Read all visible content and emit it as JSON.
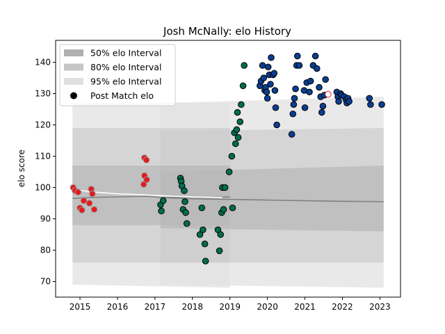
{
  "chart_data": {
    "type": "scatter",
    "title": "Josh McNally: elo History",
    "xlabel": "",
    "ylabel": "elo score",
    "xlim": [
      2014.35,
      2023.55
    ],
    "ylim": [
      65,
      147
    ],
    "xticks": [
      2015,
      2016,
      2017,
      2018,
      2019,
      2020,
      2021,
      2022,
      2023
    ],
    "yticks": [
      70,
      80,
      90,
      100,
      110,
      120,
      130,
      140
    ],
    "grid": false,
    "legend_position": "upper-left",
    "legend": [
      {
        "label": "50% elo Interval",
        "color": "#b0b0b0",
        "kind": "patch"
      },
      {
        "label": "80% elo Interval",
        "color": "#c6c6c6",
        "kind": "patch"
      },
      {
        "label": "95% elo Interval",
        "color": "#e0e0e0",
        "kind": "patch"
      },
      {
        "label": "Post Match elo",
        "color": "#000000",
        "kind": "marker"
      }
    ],
    "colors": {
      "band50": "#b8b8b8",
      "band80": "#cdcdcd",
      "band95": "#e2e2e2",
      "line": "#808080",
      "early_line": "#ffffff"
    },
    "bands": [
      {
        "name": "95%",
        "segments": [
          {
            "x": [
              2014.8,
              2019.0
            ],
            "upper": [
              127,
              127
            ],
            "lower": [
              69,
              68
            ]
          },
          {
            "x": [
              2017.15,
              2023.1
            ],
            "upper": [
              127,
              129
            ],
            "lower": [
              69,
              68
            ]
          }
        ]
      },
      {
        "name": "80%",
        "segments": [
          {
            "x": [
              2014.8,
              2019.0
            ],
            "upper": [
              119,
              119
            ],
            "lower": [
              76,
              76
            ]
          },
          {
            "x": [
              2017.15,
              2023.1
            ],
            "upper": [
              118,
              119
            ],
            "lower": [
              76,
              76
            ]
          }
        ]
      },
      {
        "name": "50%",
        "segments": [
          {
            "x": [
              2014.8,
              2019.0
            ],
            "upper": [
              107,
              107
            ],
            "lower": [
              88,
              88
            ]
          },
          {
            "x": [
              2017.15,
              2023.1
            ],
            "upper": [
              105,
              107
            ],
            "lower": [
              87,
              86
            ]
          }
        ]
      }
    ],
    "lines": [
      {
        "color": "#808080",
        "x": [
          2014.8,
          2015.2,
          2016.0,
          2016.8,
          2017.2,
          2018.0,
          2018.5,
          2019.0
        ],
        "y": [
          96.5,
          96.8,
          97.0,
          97.2,
          96.8,
          97.1,
          96.9,
          97.0
        ]
      },
      {
        "color": "#808080",
        "x": [
          2017.2,
          2018.0,
          2019.0,
          2020.0,
          2021.0,
          2022.0,
          2023.1
        ],
        "y": [
          96.8,
          96.4,
          96.2,
          96.0,
          95.8,
          95.6,
          95.5
        ]
      },
      {
        "color": "#ffffff",
        "x": [
          2014.8,
          2015.3,
          2016.0,
          2016.8,
          2017.5,
          2018.2,
          2018.8
        ],
        "y": [
          99.5,
          98.6,
          98.0,
          97.6,
          97.2,
          97.0,
          96.8
        ]
      }
    ],
    "series": [
      {
        "color": "#e31a1c",
        "edge": "#999999",
        "points": [
          [
            2014.82,
            100.0
          ],
          [
            2014.87,
            99.0
          ],
          [
            2014.95,
            98.5
          ],
          [
            2015.0,
            93.5
          ],
          [
            2015.05,
            92.8
          ],
          [
            2015.1,
            95.8
          ],
          [
            2015.25,
            95.0
          ],
          [
            2015.3,
            99.5
          ],
          [
            2015.33,
            98.0
          ],
          [
            2015.38,
            93.0
          ],
          [
            2016.72,
            109.5
          ],
          [
            2016.77,
            108.8
          ],
          [
            2016.72,
            103.8
          ],
          [
            2016.78,
            102.5
          ],
          [
            2016.7,
            101.0
          ]
        ]
      },
      {
        "color": "#006d4f",
        "edge": "#000000",
        "points": [
          [
            2017.15,
            94.5
          ],
          [
            2017.17,
            92.5
          ],
          [
            2017.22,
            95.8
          ],
          [
            2017.68,
            103.0
          ],
          [
            2017.7,
            102.0
          ],
          [
            2017.72,
            100.5
          ],
          [
            2017.75,
            93.0
          ],
          [
            2017.78,
            99.0
          ],
          [
            2017.8,
            95.5
          ],
          [
            2017.82,
            92.0
          ],
          [
            2017.85,
            88.5
          ],
          [
            2018.2,
            85.0
          ],
          [
            2018.25,
            93.5
          ],
          [
            2018.28,
            86.5
          ],
          [
            2018.33,
            82.0
          ],
          [
            2018.35,
            76.5
          ],
          [
            2018.68,
            86.5
          ],
          [
            2018.72,
            79.8
          ],
          [
            2018.75,
            85.0
          ],
          [
            2018.78,
            92.0
          ],
          [
            2018.8,
            100.0
          ],
          [
            2018.83,
            93.0
          ],
          [
            2018.87,
            100.0
          ],
          [
            2018.98,
            105.0
          ],
          [
            2019.05,
            110.0
          ],
          [
            2019.07,
            93.5
          ],
          [
            2019.12,
            117.5
          ],
          [
            2019.15,
            114.0
          ],
          [
            2019.18,
            118.5
          ],
          [
            2019.2,
            124.0
          ],
          [
            2019.22,
            116.0
          ],
          [
            2019.27,
            121.0
          ],
          [
            2019.3,
            126.5
          ],
          [
            2019.35,
            132.5
          ],
          [
            2019.38,
            139.0
          ]
        ]
      },
      {
        "color": "#0a3e91",
        "edge": "#000000",
        "points": [
          [
            2019.8,
            132.5
          ],
          [
            2019.83,
            134.0
          ],
          [
            2019.87,
            139.0
          ],
          [
            2019.9,
            135.0
          ],
          [
            2019.93,
            131.0
          ],
          [
            2019.95,
            132.0
          ],
          [
            2019.98,
            130.5
          ],
          [
            2020.0,
            128.5
          ],
          [
            2020.02,
            138.5
          ],
          [
            2020.05,
            136.0
          ],
          [
            2020.08,
            133.0
          ],
          [
            2020.1,
            141.5
          ],
          [
            2020.15,
            136.0
          ],
          [
            2020.18,
            136.5
          ],
          [
            2020.2,
            131.0
          ],
          [
            2020.22,
            125.5
          ],
          [
            2020.25,
            120.0
          ],
          [
            2020.65,
            117.0
          ],
          [
            2020.68,
            123.5
          ],
          [
            2020.7,
            126.5
          ],
          [
            2020.72,
            128.5
          ],
          [
            2020.75,
            131.5
          ],
          [
            2020.78,
            139.0
          ],
          [
            2020.8,
            142.0
          ],
          [
            2020.85,
            139.0
          ],
          [
            2020.98,
            131.0
          ],
          [
            2021.0,
            125.5
          ],
          [
            2021.05,
            133.5
          ],
          [
            2021.12,
            130.5
          ],
          [
            2021.15,
            134.0
          ],
          [
            2021.22,
            139.0
          ],
          [
            2021.28,
            142.0
          ],
          [
            2021.32,
            138.0
          ],
          [
            2021.38,
            132.0
          ],
          [
            2021.42,
            129.0
          ],
          [
            2021.45,
            124.0
          ],
          [
            2021.48,
            126.0
          ],
          [
            2021.52,
            129.5
          ],
          [
            2021.55,
            134.5
          ],
          [
            2021.85,
            130.5
          ],
          [
            2021.88,
            129.0
          ],
          [
            2021.9,
            127.5
          ],
          [
            2021.95,
            130.0
          ],
          [
            2021.98,
            129.5
          ],
          [
            2022.05,
            129.0
          ],
          [
            2022.1,
            128.0
          ],
          [
            2022.12,
            127.0
          ],
          [
            2022.15,
            128.5
          ],
          [
            2022.18,
            127.5
          ],
          [
            2022.72,
            128.5
          ],
          [
            2022.75,
            126.5
          ],
          [
            2023.05,
            126.5
          ]
        ]
      },
      {
        "color": "#ffffff",
        "edge": "#e31a1c",
        "points": [
          [
            2021.62,
            129.8
          ]
        ]
      }
    ]
  }
}
